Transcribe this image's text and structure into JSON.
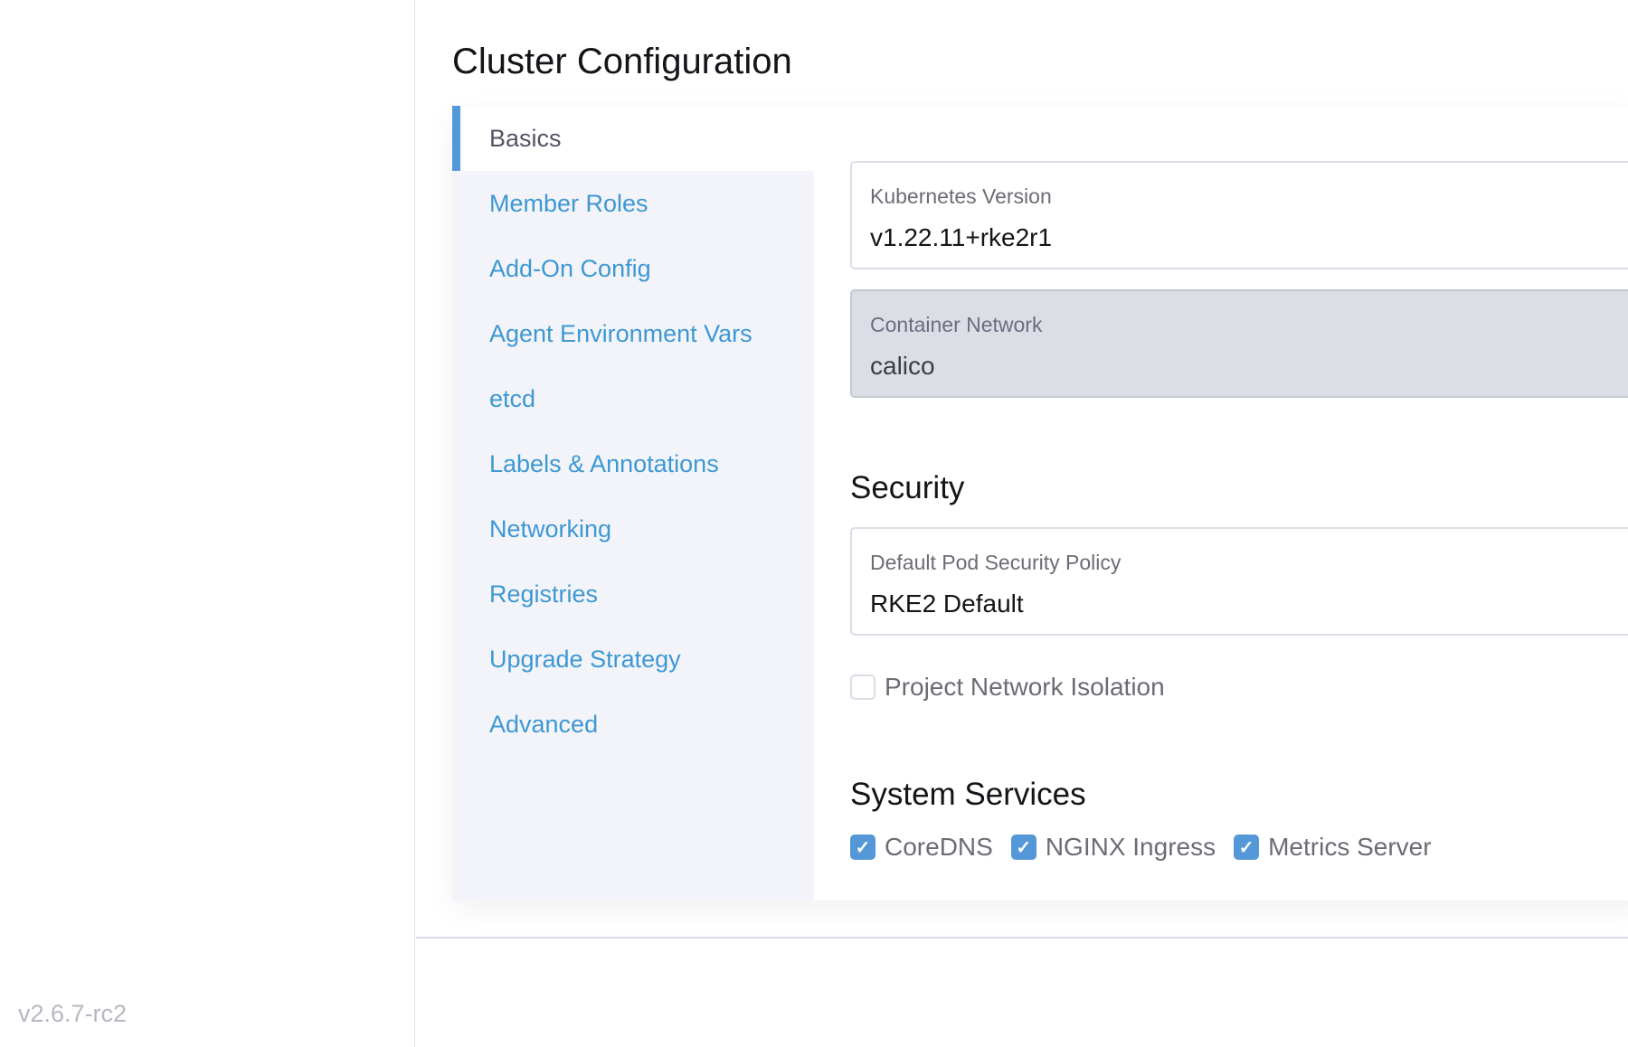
{
  "version": "v2.6.7-rc2",
  "title": "Cluster Configuration",
  "nav": {
    "items": [
      {
        "label": "Basics",
        "active": true
      },
      {
        "label": "Member Roles"
      },
      {
        "label": "Add-On Config"
      },
      {
        "label": "Agent Environment Vars"
      },
      {
        "label": "etcd"
      },
      {
        "label": "Labels & Annotations"
      },
      {
        "label": "Networking"
      },
      {
        "label": "Registries"
      },
      {
        "label": "Upgrade Strategy"
      },
      {
        "label": "Advanced"
      }
    ]
  },
  "basics": {
    "kubernetes_version": {
      "label": "Kubernetes Version",
      "value": "v1.22.11+rke2r1"
    },
    "container_network": {
      "label": "Container Network",
      "value": "calico",
      "disabled": true
    }
  },
  "security": {
    "heading": "Security",
    "psp": {
      "label": "Default Pod Security Policy",
      "value": "RKE2 Default"
    },
    "project_network_isolation": {
      "label": "Project Network Isolation",
      "checked": false
    }
  },
  "system_services": {
    "heading": "System Services",
    "items": [
      {
        "label": "CoreDNS",
        "checked": true
      },
      {
        "label": "NGINX Ingress",
        "checked": true
      },
      {
        "label": "Metrics Server",
        "checked": true
      }
    ]
  },
  "colors": {
    "accent": "#5498d8",
    "link": "#3d98d3",
    "nav_bg": "#f3f4f9"
  }
}
